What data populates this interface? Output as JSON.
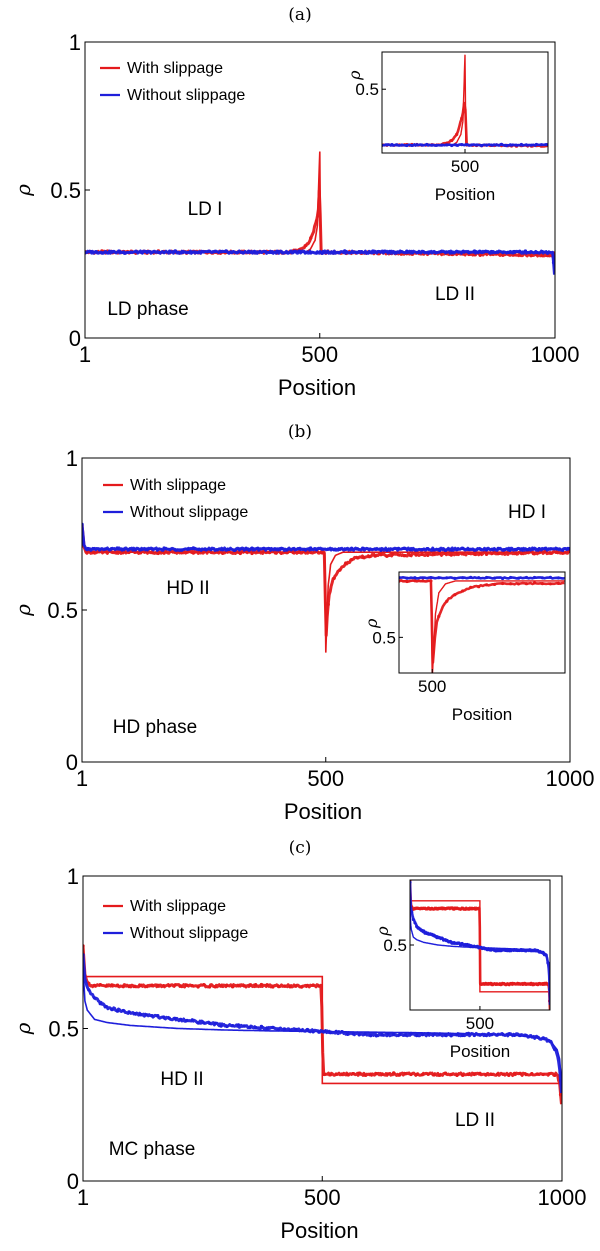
{
  "colors": {
    "with_slippage": "#e41a1c",
    "without_slippage": "#1f1fdb"
  },
  "chart_data": [
    {
      "panel": "(a)",
      "type": "line",
      "xlabel": "Position",
      "ylabel": "ρ",
      "xlim": [
        1,
        1000
      ],
      "ylim": [
        0,
        1
      ],
      "xticks": [
        1,
        500,
        1000
      ],
      "yticks": [
        0,
        0.5,
        1
      ],
      "yticklabels": [
        "0",
        "0.5",
        "1"
      ],
      "legend": {
        "placement": "top-left",
        "entries": [
          "With slippage",
          "Without slippage"
        ]
      },
      "annotations": [
        "LD I",
        "LD II",
        "LD phase"
      ],
      "series": [
        {
          "name": "With slippage",
          "kind": "theory-line",
          "x": [
            1,
            470,
            480,
            490,
            495,
            500,
            502,
            505,
            1000
          ],
          "y": [
            0.29,
            0.29,
            0.3,
            0.33,
            0.38,
            0.63,
            0.29,
            0.29,
            0.29
          ]
        },
        {
          "name": "With slippage",
          "kind": "simulation",
          "x": [
            1,
            440,
            460,
            470,
            480,
            485,
            490,
            495,
            498,
            500,
            502,
            505,
            998,
            1000
          ],
          "y": [
            0.29,
            0.29,
            0.3,
            0.31,
            0.33,
            0.35,
            0.38,
            0.41,
            0.45,
            0.55,
            0.29,
            0.29,
            0.28,
            0.22
          ]
        },
        {
          "name": "Without slippage",
          "kind": "theory-line",
          "x": [
            1,
            995,
            1000
          ],
          "y": [
            0.29,
            0.29,
            0.22
          ]
        },
        {
          "name": "Without slippage",
          "kind": "simulation",
          "x": [
            1,
            995,
            1000
          ],
          "y": [
            0.29,
            0.29,
            0.2
          ]
        }
      ],
      "inset": {
        "xlabel": "Position",
        "ylabel": "ρ",
        "xlim": [
          300,
          700
        ],
        "ylim": [
          0.26,
          0.64
        ],
        "xticks": [
          500
        ],
        "yticks": [
          0.5
        ],
        "yticklabels": [
          "0.5"
        ]
      }
    },
    {
      "panel": "(b)",
      "type": "line",
      "xlabel": "Position",
      "ylabel": "ρ",
      "xlim": [
        1,
        1000
      ],
      "ylim": [
        0,
        1
      ],
      "xticks": [
        1,
        500,
        1000
      ],
      "yticks": [
        0,
        0.5,
        1
      ],
      "yticklabels": [
        "0",
        "0.5",
        "1"
      ],
      "legend": {
        "placement": "top-left",
        "entries": [
          "With slippage",
          "Without slippage"
        ]
      },
      "annotations": [
        "HD I",
        "HD II",
        "HD phase"
      ],
      "series": [
        {
          "name": "With slippage",
          "kind": "theory-line",
          "x": [
            1,
            5,
            10,
            498,
            500,
            505,
            510,
            520,
            535,
            1000
          ],
          "y": [
            0.77,
            0.71,
            0.69,
            0.69,
            0.36,
            0.58,
            0.65,
            0.68,
            0.69,
            0.69
          ]
        },
        {
          "name": "With slippage",
          "kind": "simulation",
          "x": [
            1,
            5,
            10,
            498,
            500,
            503,
            507,
            515,
            525,
            540,
            560,
            600,
            1000
          ],
          "y": [
            0.78,
            0.71,
            0.69,
            0.69,
            0.38,
            0.48,
            0.55,
            0.6,
            0.63,
            0.65,
            0.67,
            0.68,
            0.69
          ]
        },
        {
          "name": "Without slippage",
          "kind": "theory-line",
          "x": [
            1,
            5,
            10,
            1000
          ],
          "y": [
            0.76,
            0.71,
            0.7,
            0.7
          ]
        },
        {
          "name": "Without slippage",
          "kind": "simulation",
          "x": [
            1,
            5,
            10,
            1000
          ],
          "y": [
            0.78,
            0.71,
            0.7,
            0.7
          ]
        }
      ],
      "inset": {
        "xlabel": "Position",
        "ylabel": "ρ",
        "xlim": [
          450,
          700
        ],
        "ylim": [
          0.38,
          0.72
        ],
        "xticks": [
          500
        ],
        "yticks": [
          0.5
        ],
        "yticklabels": [
          "0.5"
        ]
      }
    },
    {
      "panel": "(c)",
      "type": "line",
      "xlabel": "Position",
      "ylabel": "ρ",
      "xlim": [
        1,
        1000
      ],
      "ylim": [
        0,
        1
      ],
      "xticks": [
        1,
        500,
        1000
      ],
      "yticks": [
        0,
        0.5,
        1
      ],
      "yticklabels": [
        "0",
        "0.5",
        "1"
      ],
      "legend": {
        "placement": "top-left",
        "entries": [
          "With slippage",
          "Without slippage"
        ]
      },
      "annotations": [
        "HD II",
        "LD II",
        "MC phase"
      ],
      "series": [
        {
          "name": "With slippage",
          "kind": "theory-line",
          "x": [
            1,
            2,
            500,
            500,
            998,
            1000
          ],
          "y": [
            0.67,
            0.67,
            0.67,
            0.32,
            0.32,
            0.32
          ]
        },
        {
          "name": "With slippage",
          "kind": "simulation",
          "x": [
            1,
            5,
            10,
            20,
            498,
            502,
            510,
            990,
            995,
            1000
          ],
          "y": [
            0.77,
            0.68,
            0.65,
            0.64,
            0.64,
            0.35,
            0.35,
            0.35,
            0.32,
            0.23
          ]
        },
        {
          "name": "Without slippage",
          "kind": "theory-line",
          "x": [
            1,
            5,
            10,
            25,
            50,
            100,
            200,
            300,
            400,
            500,
            600,
            700,
            800,
            900,
            950,
            975,
            990,
            995,
            1000
          ],
          "y": [
            0.7,
            0.59,
            0.56,
            0.53,
            0.52,
            0.51,
            0.5,
            0.495,
            0.492,
            0.49,
            0.488,
            0.486,
            0.483,
            0.478,
            0.47,
            0.46,
            0.43,
            0.4,
            0.3
          ]
        },
        {
          "name": "Without slippage",
          "kind": "simulation",
          "x": [
            1,
            5,
            10,
            25,
            50,
            100,
            200,
            300,
            400,
            500,
            600,
            700,
            800,
            900,
            950,
            975,
            990,
            995,
            1000
          ],
          "y": [
            0.74,
            0.66,
            0.63,
            0.6,
            0.57,
            0.55,
            0.53,
            0.51,
            0.5,
            0.49,
            0.48,
            0.48,
            0.48,
            0.48,
            0.47,
            0.46,
            0.42,
            0.37,
            0.27
          ]
        }
      ],
      "inset": {
        "xlabel": "Position",
        "ylabel": "ρ",
        "xlim": [
          1,
          1000
        ],
        "ylim": [
          0.25,
          0.75
        ],
        "xticks": [
          500
        ],
        "yticks": [
          0.5
        ],
        "yticklabels": [
          "0.5"
        ]
      }
    }
  ]
}
